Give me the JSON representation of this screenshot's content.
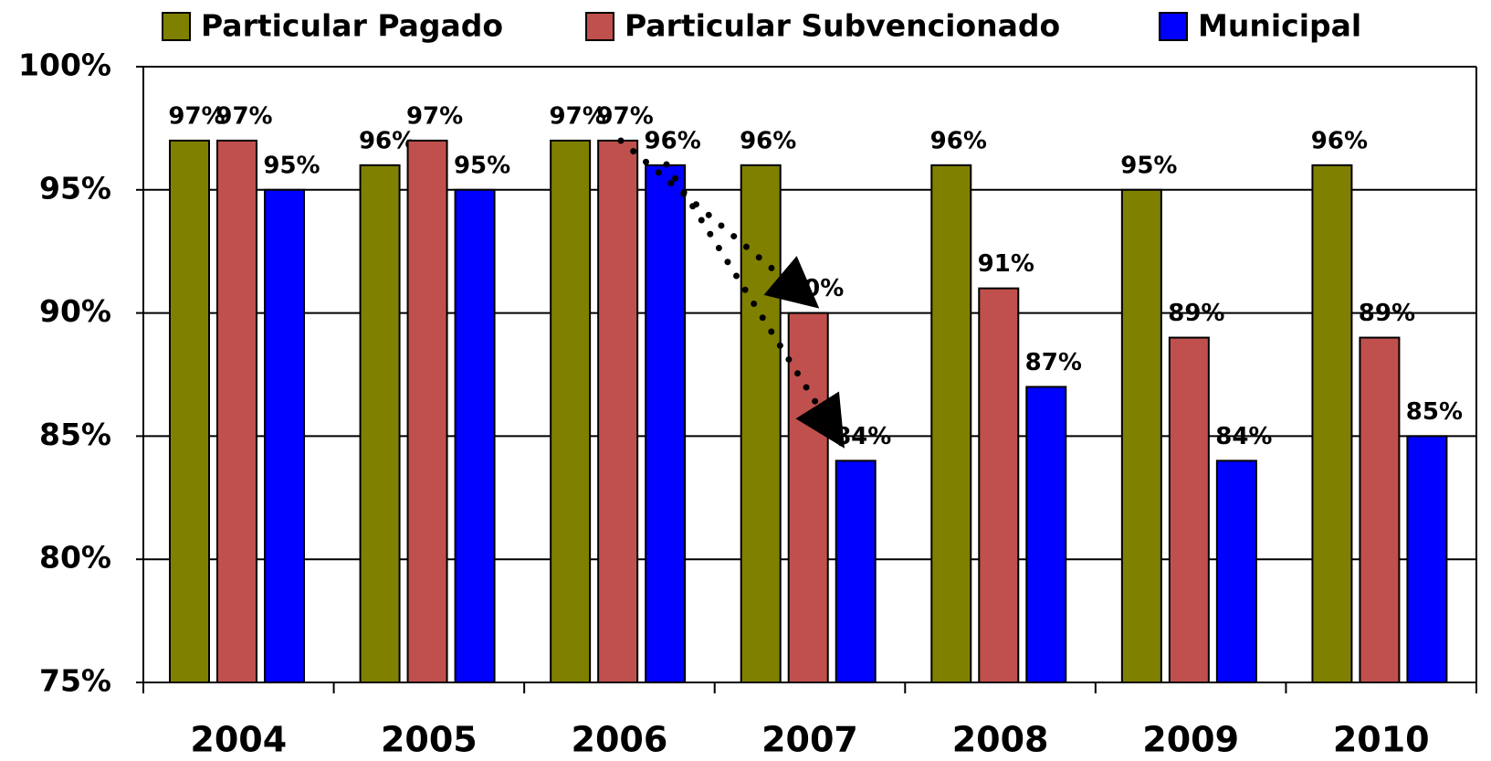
{
  "chart_data": {
    "type": "bar",
    "categories": [
      "2004",
      "2005",
      "2006",
      "2007",
      "2008",
      "2009",
      "2010"
    ],
    "series": [
      {
        "name": "Particular Pagado",
        "color": "#808000",
        "values": [
          97,
          96,
          97,
          96,
          96,
          95,
          96
        ],
        "value_labels": [
          "97%",
          "96%",
          "97%",
          "96%",
          "96%",
          "95%",
          "96%"
        ]
      },
      {
        "name": "Particular Subvencionado",
        "color": "#c0504d",
        "values": [
          97,
          97,
          97,
          90,
          91,
          89,
          89
        ],
        "value_labels": [
          "97%",
          "97%",
          "97%",
          "90%",
          "91%",
          "89%",
          "89%"
        ]
      },
      {
        "name": "Municipal",
        "color": "#0000ff",
        "values": [
          95,
          95,
          96,
          84,
          87,
          84,
          85
        ],
        "value_labels": [
          "95%",
          "95%",
          "96%",
          "84%",
          "87%",
          "84%",
          "85%"
        ]
      }
    ],
    "ylim": [
      75,
      100
    ],
    "yticks": [
      {
        "value": 75,
        "label": "75%"
      },
      {
        "value": 80,
        "label": "80%"
      },
      {
        "value": 85,
        "label": "85%"
      },
      {
        "value": 90,
        "label": "90%"
      },
      {
        "value": 95,
        "label": "95%"
      },
      {
        "value": 100,
        "label": "100%"
      }
    ],
    "grid": true,
    "legend": "top"
  }
}
